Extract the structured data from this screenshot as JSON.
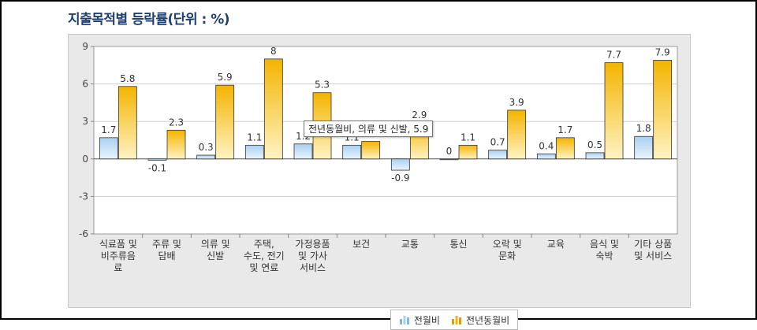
{
  "title": "지출목적별 등락률(단위 : %)",
  "chart_data": {
    "type": "bar",
    "categories": [
      [
        "식료품 및",
        "비주류음",
        "료"
      ],
      [
        "주류 및",
        "담배"
      ],
      [
        "의류 및",
        "신발"
      ],
      [
        "주택,",
        "수도, 전기",
        "및 연료"
      ],
      [
        "가정용품",
        "및 가사",
        "서비스"
      ],
      [
        "보건"
      ],
      [
        "교통"
      ],
      [
        "통신"
      ],
      [
        "오락 및",
        "문화"
      ],
      [
        "교육"
      ],
      [
        "음식 및",
        "숙박"
      ],
      [
        "기타 상품",
        "및 서비스"
      ]
    ],
    "series": [
      {
        "name": "전월비",
        "values": [
          1.7,
          -0.1,
          0.3,
          1.1,
          1.2,
          1.1,
          -0.9,
          0,
          0.7,
          0.4,
          0.5,
          1.8
        ]
      },
      {
        "name": "전년동월비",
        "values": [
          5.8,
          2.3,
          5.9,
          8,
          5.3,
          1.4,
          2.9,
          1.1,
          3.9,
          1.7,
          7.7,
          7.9
        ]
      }
    ],
    "ylim": [
      -6,
      9
    ],
    "yticks": [
      -6,
      -3,
      0,
      3,
      6,
      9
    ],
    "grid": true,
    "legend_position": "bottom-center",
    "colors": {
      "series1_top": "#a9d0f2",
      "series1_bottom": "#eaf4fd",
      "series2_top": "#f4b400",
      "series2_bottom": "#fff3c4",
      "bar_stroke": "#333333"
    }
  },
  "legend": {
    "items": [
      {
        "label": "전월비",
        "icon": "bar-chart-blue-icon"
      },
      {
        "label": "전년동월비",
        "icon": "bar-chart-yellow-icon"
      }
    ]
  },
  "tooltip": {
    "text": "전년동월비, 의류 및 신발, 5.9"
  }
}
